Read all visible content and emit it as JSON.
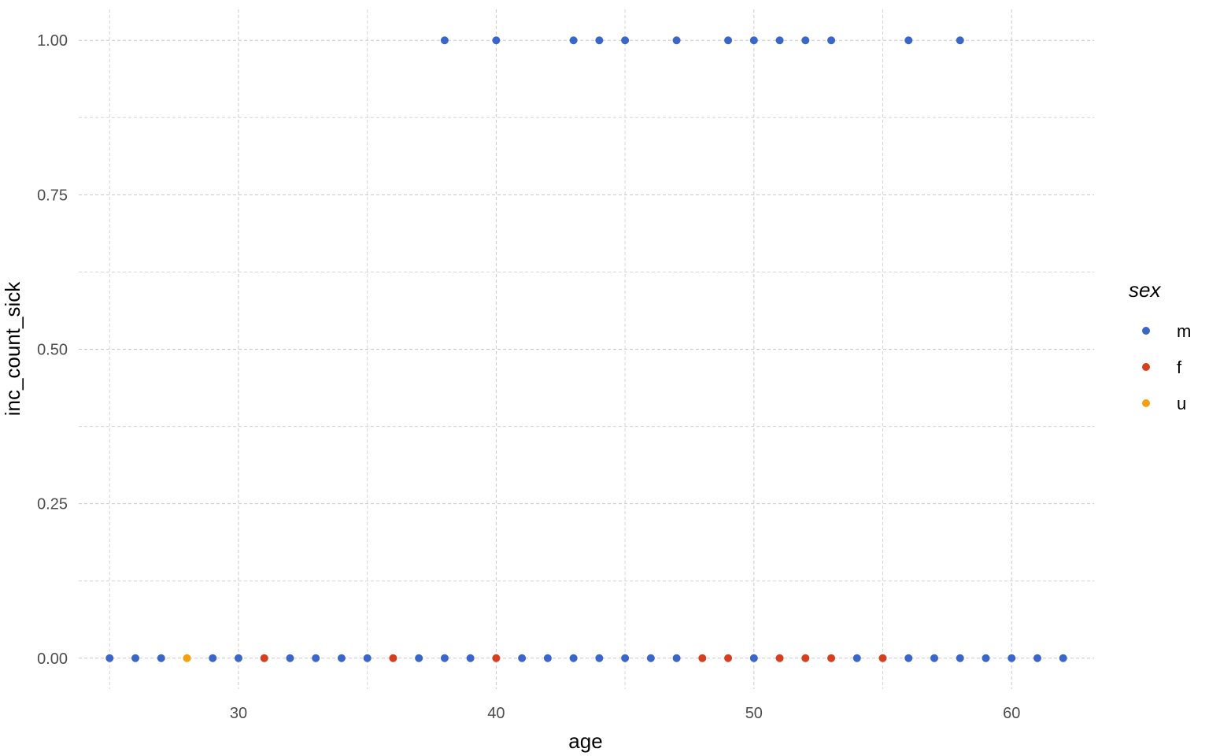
{
  "chart_data": {
    "type": "scatter",
    "title": "",
    "xlabel": "age",
    "ylabel": "inc_count_sick",
    "xlim": [
      23.8,
      63.2
    ],
    "ylim": [
      -0.05,
      1.05
    ],
    "x_ticks": [
      30,
      40,
      50,
      60
    ],
    "x_tick_labels": [
      "30",
      "40",
      "50",
      "60"
    ],
    "x_minor_ticks": [
      25,
      35,
      45,
      55
    ],
    "y_ticks": [
      0,
      0.25,
      0.5,
      0.75,
      1
    ],
    "y_tick_labels": [
      "0.00",
      "0.25",
      "0.50",
      "0.75",
      "1.00"
    ],
    "y_minor_ticks": [
      0.125,
      0.375,
      0.625,
      0.875
    ],
    "grid": true,
    "legend": {
      "title": "sex",
      "placement": "right",
      "entries": [
        {
          "key": "m",
          "label": "m",
          "color": "#3a66c9"
        },
        {
          "key": "f",
          "label": "f",
          "color": "#d53e1f"
        },
        {
          "key": "u",
          "label": "u",
          "color": "#f5a00f"
        }
      ]
    },
    "series": [
      {
        "name": "m",
        "color": "#3a66c9",
        "points": [
          [
            38,
            1
          ],
          [
            40,
            1
          ],
          [
            43,
            1
          ],
          [
            44,
            1
          ],
          [
            45,
            1
          ],
          [
            47,
            1
          ],
          [
            49,
            1
          ],
          [
            50,
            1
          ],
          [
            51,
            1
          ],
          [
            52,
            1
          ],
          [
            53,
            1
          ],
          [
            56,
            1
          ],
          [
            58,
            1
          ],
          [
            25,
            0
          ],
          [
            26,
            0
          ],
          [
            27,
            0
          ],
          [
            29,
            0
          ],
          [
            30,
            0
          ],
          [
            32,
            0
          ],
          [
            33,
            0
          ],
          [
            34,
            0
          ],
          [
            35,
            0
          ],
          [
            37,
            0
          ],
          [
            38,
            0
          ],
          [
            39,
            0
          ],
          [
            41,
            0
          ],
          [
            42,
            0
          ],
          [
            43,
            0
          ],
          [
            44,
            0
          ],
          [
            45,
            0
          ],
          [
            46,
            0
          ],
          [
            47,
            0
          ],
          [
            50,
            0
          ],
          [
            54,
            0
          ],
          [
            56,
            0
          ],
          [
            57,
            0
          ],
          [
            58,
            0
          ],
          [
            59,
            0
          ],
          [
            60,
            0
          ],
          [
            61,
            0
          ],
          [
            62,
            0
          ]
        ]
      },
      {
        "name": "f",
        "color": "#d53e1f",
        "points": [
          [
            31,
            0
          ],
          [
            36,
            0
          ],
          [
            40,
            0
          ],
          [
            48,
            0
          ],
          [
            49,
            0
          ],
          [
            51,
            0
          ],
          [
            52,
            0
          ],
          [
            53,
            0
          ],
          [
            55,
            0
          ]
        ]
      },
      {
        "name": "u",
        "color": "#f5a00f",
        "points": [
          [
            28,
            0
          ]
        ]
      }
    ]
  }
}
